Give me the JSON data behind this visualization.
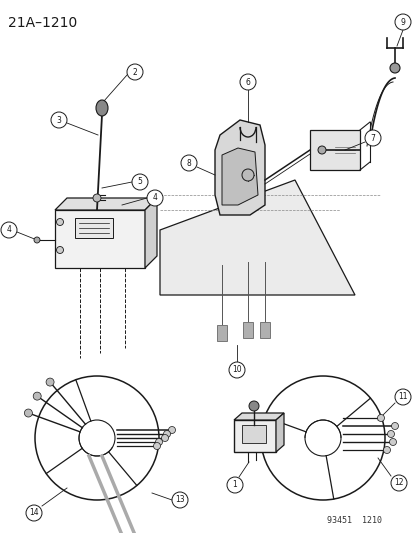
{
  "title": "21A–1210",
  "subtitle": "93451  1210",
  "background_color": "#ffffff",
  "line_color": "#1a1a1a",
  "fig_width": 4.14,
  "fig_height": 5.33,
  "dpi": 100
}
